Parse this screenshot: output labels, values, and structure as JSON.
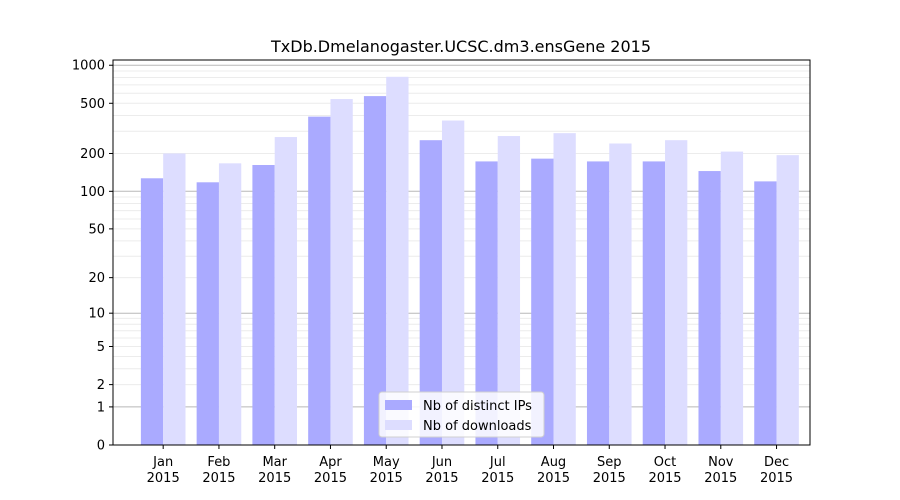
{
  "chart_data": {
    "type": "bar",
    "title": "TxDb.Dmelanogaster.UCSC.dm3.ensGene 2015",
    "xlabel": "",
    "ylabel": "",
    "yscale": "log1p",
    "ylim": [
      0,
      1100
    ],
    "yticks": [
      0,
      1,
      2,
      5,
      10,
      20,
      50,
      100,
      200,
      500,
      1000
    ],
    "ytick_labels": [
      "0",
      "1",
      "2",
      "5",
      "10",
      "20",
      "50",
      "100",
      "200",
      "500",
      "1000"
    ],
    "categories": [
      "Jan\n2015",
      "Feb\n2015",
      "Mar\n2015",
      "Apr\n2015",
      "May\n2015",
      "Jun\n2015",
      "Jul\n2015",
      "Aug\n2015",
      "Sep\n2015",
      "Oct\n2015",
      "Nov\n2015",
      "Dec\n2015"
    ],
    "series": [
      {
        "name": "Nb of distinct IPs",
        "color": "#aaaaff",
        "values": [
          127,
          118,
          162,
          392,
          570,
          255,
          173,
          182,
          173,
          173,
          145,
          120
        ]
      },
      {
        "name": "Nb of downloads",
        "color": "#ddddff",
        "values": [
          200,
          167,
          270,
          540,
          810,
          365,
          275,
          290,
          240,
          255,
          207,
          194
        ]
      }
    ],
    "grid": true,
    "legend_position": "lower-center"
  }
}
